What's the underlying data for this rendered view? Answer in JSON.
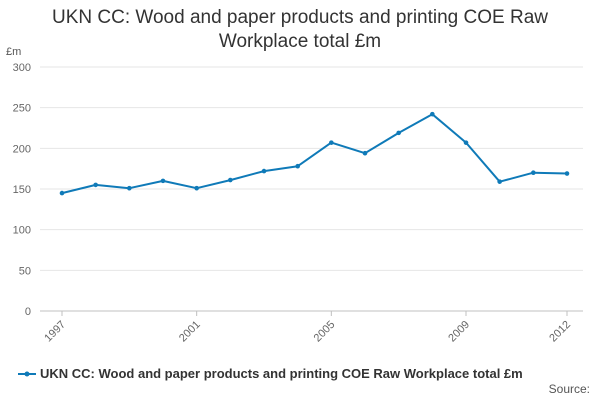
{
  "chart_data": {
    "type": "line",
    "title": "UKN CC: Wood and paper products and printing COE Raw Workplace total £m",
    "title_lines": [
      "UKN CC: Wood and paper products and printing COE Raw",
      "Workplace total £m"
    ],
    "ylabel": "£m",
    "xlabel": "",
    "ylim": [
      0,
      300
    ],
    "yticks": [
      0,
      50,
      100,
      150,
      200,
      250,
      300
    ],
    "xticks": [
      1997,
      2001,
      2005,
      2009,
      2012
    ],
    "grid": true,
    "legend_position": "bottom-left",
    "colors": {
      "series": "#0f7ab8",
      "grid": "#e6e6e6",
      "tick_text": "#666666"
    },
    "series": [
      {
        "name": "UKN CC: Wood and paper products and printing COE Raw Workplace total £m",
        "x": [
          1997,
          1998,
          1999,
          2000,
          2001,
          2002,
          2003,
          2004,
          2005,
          2006,
          2007,
          2008,
          2009,
          2010,
          2011,
          2012
        ],
        "values": [
          145,
          155,
          151,
          160,
          151,
          161,
          172,
          178,
          207,
          194,
          219,
          242,
          207,
          159,
          170,
          169
        ]
      }
    ]
  },
  "footer": {
    "source": "Source:"
  }
}
